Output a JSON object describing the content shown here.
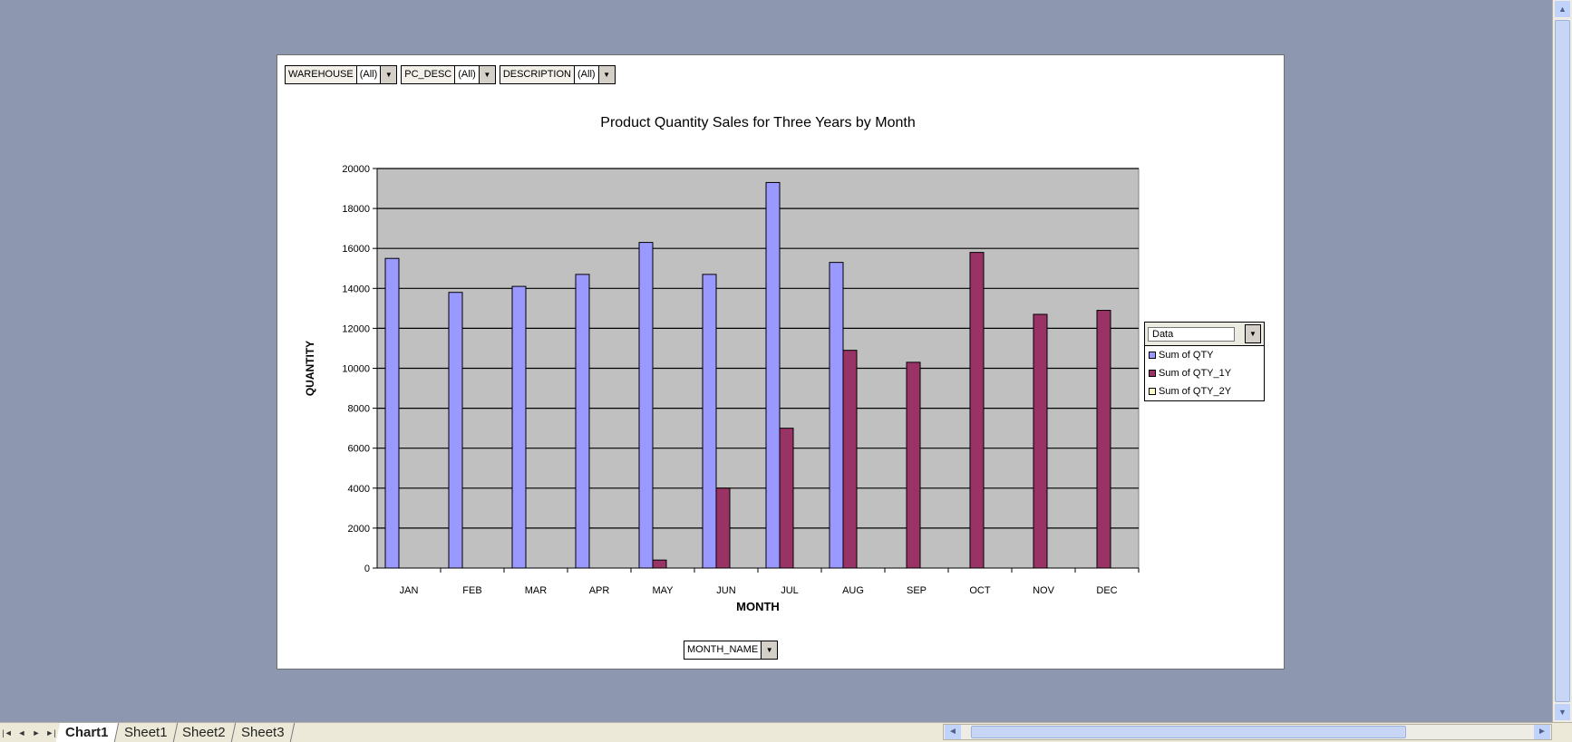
{
  "page_fields": [
    {
      "name": "WAREHOUSE",
      "value": "(All)"
    },
    {
      "name": "PC_DESC",
      "value": "(All)"
    },
    {
      "name": "DESCRIPTION",
      "value": "(All)"
    }
  ],
  "legend": {
    "header_label": "Data"
  },
  "row_field": {
    "name": "MONTH_NAME"
  },
  "sheet_tabs": [
    "Chart1",
    "Sheet1",
    "Sheet2",
    "Sheet3"
  ],
  "active_tab": "Chart1",
  "colors": {
    "series_qty": "#9999ff",
    "series_qty_1y": "#993366",
    "series_qty_2y": "#ffffcc",
    "plot_bg": "#c0c0c0",
    "sheet_bg": "#8e97b0"
  },
  "chart_data": {
    "type": "bar",
    "title": "Product Quantity Sales for Three Years by Month",
    "xlabel": "MONTH",
    "ylabel": "QUANTITY",
    "ylim": [
      0,
      20000
    ],
    "yticks": [
      0,
      2000,
      4000,
      6000,
      8000,
      10000,
      12000,
      14000,
      16000,
      18000,
      20000
    ],
    "grid": true,
    "legend_position": "right",
    "categories": [
      "JAN",
      "FEB",
      "MAR",
      "APR",
      "MAY",
      "JUN",
      "JUL",
      "AUG",
      "SEP",
      "OCT",
      "NOV",
      "DEC"
    ],
    "series": [
      {
        "name": "Sum of QTY",
        "values": [
          15500,
          13800,
          14100,
          14700,
          16300,
          14700,
          19300,
          15300,
          null,
          null,
          null,
          null
        ]
      },
      {
        "name": "Sum of QTY_1Y",
        "values": [
          null,
          null,
          null,
          null,
          400,
          4000,
          7000,
          10900,
          10300,
          15800,
          12700,
          12900
        ]
      },
      {
        "name": "Sum of QTY_2Y",
        "values": [
          null,
          null,
          null,
          null,
          null,
          null,
          null,
          null,
          null,
          null,
          null,
          null
        ]
      }
    ]
  }
}
